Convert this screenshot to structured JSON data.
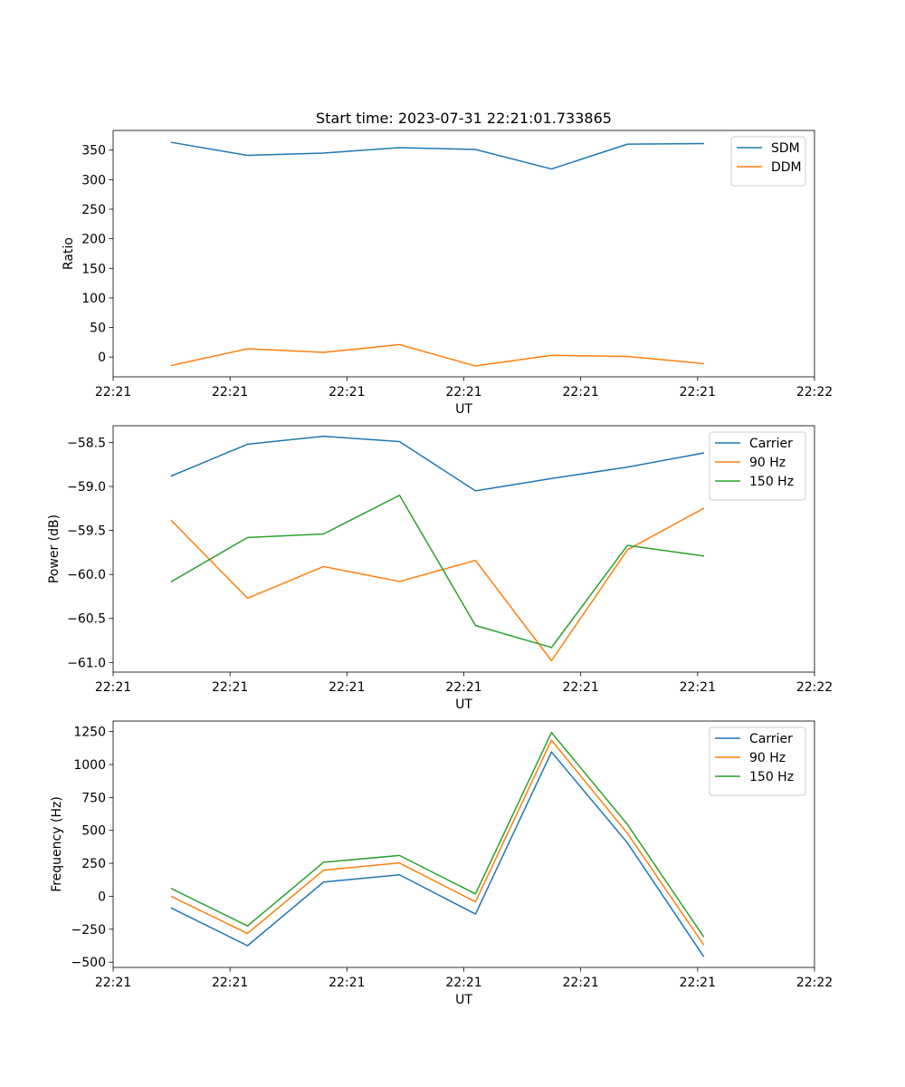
{
  "colors": {
    "c0": "#1f77b4",
    "c1": "#ff7f0e",
    "c2": "#2ca02c"
  },
  "figure_title": "Start time: 2023-07-31 22:21:01.733865",
  "chart_data": [
    {
      "type": "line",
      "title": "Start time: 2023-07-31 22:21:01.733865",
      "xlabel": "UT",
      "ylabel": "Ratio",
      "x": [
        0.5,
        1.15,
        1.8,
        2.45,
        3.1,
        3.75,
        4.4,
        5.05
      ],
      "xlim": [
        0,
        6
      ],
      "xticks": [
        0,
        1,
        2,
        3,
        4,
        5,
        6
      ],
      "xtick_labels": [
        "22:21",
        "22:21",
        "22:21",
        "22:21",
        "22:21",
        "22:21",
        "22:22"
      ],
      "ylim": [
        -33.4,
        383.2
      ],
      "yticks": [
        0,
        50,
        100,
        150,
        200,
        250,
        300,
        350
      ],
      "ytick_labels": [
        "0",
        "50",
        "100",
        "150",
        "200",
        "250",
        "300",
        "350"
      ],
      "legend_position": "upper right",
      "series": [
        {
          "name": "SDM",
          "color": "#1f77b4",
          "values": [
            363,
            341,
            345,
            354,
            351,
            318,
            360,
            361
          ]
        },
        {
          "name": "DDM",
          "color": "#ff7f0e",
          "values": [
            -14,
            14,
            8,
            21,
            -15,
            3,
            1,
            -11
          ]
        }
      ]
    },
    {
      "type": "line",
      "title": "",
      "xlabel": "UT",
      "ylabel": "Power (dB)",
      "x": [
        0.5,
        1.15,
        1.8,
        2.45,
        3.1,
        3.75,
        4.4,
        5.05
      ],
      "xlim": [
        0,
        6
      ],
      "xticks": [
        0,
        1,
        2,
        3,
        4,
        5,
        6
      ],
      "xtick_labels": [
        "22:21",
        "22:21",
        "22:21",
        "22:21",
        "22:21",
        "22:21",
        "22:22"
      ],
      "ylim": [
        -61.11,
        -58.31
      ],
      "yticks": [
        -61.0,
        -60.5,
        -60.0,
        -59.5,
        -59.0,
        -58.5
      ],
      "ytick_labels": [
        "−61.0",
        "−60.5",
        "−60.0",
        "−59.5",
        "−59.0",
        "−58.5"
      ],
      "legend_position": "upper right",
      "series": [
        {
          "name": "Carrier",
          "color": "#1f77b4",
          "values": [
            -58.88,
            -58.52,
            -58.43,
            -58.49,
            -59.05,
            -58.91,
            -58.78,
            -58.62
          ]
        },
        {
          "name": "90 Hz",
          "color": "#ff7f0e",
          "values": [
            -59.39,
            -60.27,
            -59.91,
            -60.08,
            -59.84,
            -60.98,
            -59.72,
            -59.25
          ]
        },
        {
          "name": "150 Hz",
          "color": "#2ca02c",
          "values": [
            -60.08,
            -59.58,
            -59.54,
            -59.1,
            -60.58,
            -60.83,
            -59.67,
            -59.79
          ]
        }
      ]
    },
    {
      "type": "line",
      "title": "",
      "xlabel": "UT",
      "ylabel": "Frequency (Hz)",
      "x": [
        0.5,
        1.15,
        1.8,
        2.45,
        3.1,
        3.75,
        4.4,
        5.05
      ],
      "xlim": [
        0,
        6
      ],
      "xticks": [
        0,
        1,
        2,
        3,
        4,
        5,
        6
      ],
      "xtick_labels": [
        "22:21",
        "22:21",
        "22:21",
        "22:21",
        "22:21",
        "22:21",
        "22:22"
      ],
      "ylim": [
        -540,
        1330
      ],
      "yticks": [
        -500,
        -250,
        0,
        250,
        500,
        750,
        1000,
        1250
      ],
      "ytick_labels": [
        "−500",
        "−250",
        "0",
        "250",
        "500",
        "750",
        "1000",
        "1250"
      ],
      "legend_position": "upper right",
      "series": [
        {
          "name": "Carrier",
          "color": "#1f77b4",
          "values": [
            -90,
            -375,
            108,
            163,
            -135,
            1095,
            405,
            -455
          ]
        },
        {
          "name": "90 Hz",
          "color": "#ff7f0e",
          "values": [
            -2,
            -282,
            198,
            253,
            -42,
            1185,
            478,
            -365
          ]
        },
        {
          "name": "150 Hz",
          "color": "#2ca02c",
          "values": [
            58,
            -225,
            258,
            310,
            18,
            1243,
            545,
            -305
          ]
        }
      ]
    }
  ]
}
